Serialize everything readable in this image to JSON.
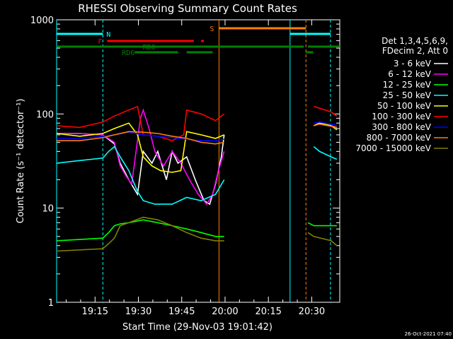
{
  "chart_data": {
    "type": "line",
    "title": "RHESSI Observing Summary Count Rates",
    "xlabel": "Start Time (29-Nov-03 19:01:42)",
    "ylabel": "Count Rate (s⁻¹ detector⁻¹)",
    "xlim_min": [
      0,
      98
    ],
    "x_ticks": [
      {
        "label": "19:15",
        "min": 13.3
      },
      {
        "label": "19:30",
        "min": 28.3
      },
      {
        "label": "19:45",
        "min": 43.3
      },
      {
        "label": "20:00",
        "min": 58.3
      },
      {
        "label": "20:15",
        "min": 73.3
      },
      {
        "label": "20:30",
        "min": 88.3
      }
    ],
    "y_scale": "log",
    "ylim": [
      1,
      1000
    ],
    "y_ticks": [
      {
        "label": "1",
        "v": 1
      },
      {
        "label": "10",
        "v": 10
      },
      {
        "label": "100",
        "v": 100
      },
      {
        "label": "1000",
        "v": 1000
      }
    ],
    "legend": {
      "header": [
        "Det 1,3,4,5,6,9,",
        "FDecim 2, Att 0"
      ],
      "placement": "right"
    },
    "series": [
      {
        "name": "3 - 6 keV",
        "color": "#ffffff",
        "points": [
          [
            0,
            62
          ],
          [
            8,
            62
          ],
          [
            16,
            60
          ],
          [
            20,
            48
          ],
          [
            22,
            30
          ],
          [
            25,
            20
          ],
          [
            28,
            14
          ],
          [
            30,
            40
          ],
          [
            33,
            30
          ],
          [
            35,
            40
          ],
          [
            38,
            20
          ],
          [
            40,
            40
          ],
          [
            42,
            30
          ],
          [
            45,
            35
          ],
          [
            48,
            20
          ],
          [
            51,
            12
          ],
          [
            53,
            11
          ],
          [
            55,
            18
          ],
          [
            57,
            35
          ],
          [
            58,
            60
          ]
        ]
      },
      {
        "name": "6 - 12 keV",
        "color": "#ff00ff",
        "points": [
          [
            0,
            62
          ],
          [
            8,
            62
          ],
          [
            16,
            60
          ],
          [
            20,
            50
          ],
          [
            22,
            28
          ],
          [
            24,
            22
          ],
          [
            26,
            18
          ],
          [
            29,
            90
          ],
          [
            30,
            110
          ],
          [
            32,
            70
          ],
          [
            34,
            40
          ],
          [
            37,
            28
          ],
          [
            40,
            40
          ],
          [
            43,
            30
          ],
          [
            46,
            20
          ],
          [
            49,
            14
          ],
          [
            52,
            11
          ],
          [
            54,
            14
          ],
          [
            56,
            25
          ],
          [
            58,
            40
          ]
        ]
      },
      {
        "name": "12 - 25 keV",
        "color": "#00ff00",
        "points": [
          [
            0,
            4.5
          ],
          [
            16,
            4.8
          ],
          [
            18,
            5.5
          ],
          [
            20,
            6.5
          ],
          [
            22,
            6.8
          ],
          [
            25,
            7
          ],
          [
            30,
            7.5
          ],
          [
            35,
            7
          ],
          [
            40,
            6.5
          ],
          [
            45,
            6
          ],
          [
            50,
            5.5
          ],
          [
            55,
            5
          ],
          [
            58,
            5
          ]
        ]
      },
      {
        "name": "25 - 50 keV",
        "color": "#00ffff",
        "points": [
          [
            0,
            30
          ],
          [
            8,
            32
          ],
          [
            16,
            34
          ],
          [
            18,
            40
          ],
          [
            20,
            45
          ],
          [
            22,
            35
          ],
          [
            25,
            25
          ],
          [
            28,
            15
          ],
          [
            30,
            12
          ],
          [
            34,
            11
          ],
          [
            40,
            11
          ],
          [
            45,
            13
          ],
          [
            50,
            12
          ],
          [
            55,
            14
          ],
          [
            58,
            20
          ]
        ]
      },
      {
        "name": "50 - 100 keV",
        "color": "#ffff00",
        "points": [
          [
            0,
            62
          ],
          [
            8,
            58
          ],
          [
            16,
            62
          ],
          [
            20,
            70
          ],
          [
            25,
            80
          ],
          [
            28,
            60
          ],
          [
            30,
            35
          ],
          [
            33,
            28
          ],
          [
            36,
            25
          ],
          [
            40,
            24
          ],
          [
            43,
            25
          ],
          [
            45,
            65
          ],
          [
            50,
            60
          ],
          [
            55,
            55
          ],
          [
            58,
            60
          ]
        ]
      },
      {
        "name": "100 - 300 keV",
        "color": "#ff0000",
        "points": [
          [
            0,
            75
          ],
          [
            8,
            72
          ],
          [
            16,
            82
          ],
          [
            20,
            95
          ],
          [
            25,
            110
          ],
          [
            28,
            120
          ],
          [
            30,
            60
          ],
          [
            35,
            58
          ],
          [
            40,
            52
          ],
          [
            44,
            60
          ],
          [
            45,
            110
          ],
          [
            50,
            100
          ],
          [
            55,
            85
          ],
          [
            58,
            100
          ]
        ]
      },
      {
        "name": "300 - 800 keV",
        "color": "#0000ff",
        "points": [
          [
            0,
            55
          ],
          [
            8,
            55
          ],
          [
            16,
            58
          ],
          [
            20,
            60
          ],
          [
            25,
            64
          ],
          [
            30,
            60
          ],
          [
            35,
            58
          ],
          [
            40,
            56
          ],
          [
            45,
            54
          ],
          [
            50,
            52
          ],
          [
            55,
            52
          ],
          [
            58,
            54
          ]
        ]
      },
      {
        "name": "800 - 7000 keV",
        "color": "#ff8000",
        "points": [
          [
            0,
            52
          ],
          [
            8,
            52
          ],
          [
            16,
            56
          ],
          [
            20,
            60
          ],
          [
            25,
            65
          ],
          [
            30,
            64
          ],
          [
            35,
            62
          ],
          [
            40,
            58
          ],
          [
            45,
            55
          ],
          [
            50,
            50
          ],
          [
            55,
            48
          ],
          [
            58,
            50
          ]
        ]
      },
      {
        "name": "7000 - 15000 keV",
        "color": "#808000",
        "points": [
          [
            0,
            3.5
          ],
          [
            16,
            3.7
          ],
          [
            18,
            4.2
          ],
          [
            20,
            4.8
          ],
          [
            22,
            6.5
          ],
          [
            25,
            7
          ],
          [
            30,
            8
          ],
          [
            35,
            7.5
          ],
          [
            40,
            6.5
          ],
          [
            45,
            5.5
          ],
          [
            50,
            4.8
          ],
          [
            55,
            4.5
          ],
          [
            58,
            4.5
          ]
        ]
      }
    ],
    "series_after": [
      {
        "color": "#ffffff",
        "points": [
          [
            89,
            75
          ],
          [
            91,
            80
          ],
          [
            95,
            75
          ],
          [
            97,
            72
          ]
        ]
      },
      {
        "color": "#ff00ff",
        "points": [
          [
            89,
            75
          ],
          [
            91,
            80
          ],
          [
            95,
            75
          ],
          [
            97,
            72
          ]
        ]
      },
      {
        "color": "#00ff00",
        "points": [
          [
            87,
            7
          ],
          [
            89,
            6.5
          ],
          [
            95,
            6.5
          ],
          [
            97,
            6.5
          ]
        ]
      },
      {
        "color": "#00ffff",
        "points": [
          [
            89,
            45
          ],
          [
            91,
            40
          ],
          [
            95,
            35
          ],
          [
            97,
            33
          ]
        ]
      },
      {
        "color": "#ffff00",
        "points": [
          [
            89,
            75
          ],
          [
            91,
            80
          ],
          [
            95,
            75
          ],
          [
            97,
            68
          ]
        ]
      },
      {
        "color": "#ff0000",
        "points": [
          [
            89,
            120
          ],
          [
            91,
            115
          ],
          [
            95,
            105
          ],
          [
            97,
            95
          ]
        ]
      },
      {
        "color": "#0000ff",
        "points": [
          [
            89,
            80
          ],
          [
            91,
            82
          ],
          [
            95,
            78
          ],
          [
            97,
            76
          ]
        ]
      },
      {
        "color": "#ff8000",
        "points": [
          [
            89,
            75
          ],
          [
            91,
            78
          ],
          [
            95,
            74
          ],
          [
            97,
            72
          ]
        ]
      },
      {
        "color": "#808000",
        "points": [
          [
            87,
            5.5
          ],
          [
            89,
            5
          ],
          [
            95,
            4.5
          ],
          [
            97,
            4
          ]
        ]
      }
    ],
    "vlines": [
      {
        "min": 0,
        "color": "#00ffff",
        "dash": false
      },
      {
        "min": 16,
        "color": "#00ffff",
        "dash": true
      },
      {
        "min": 56.2,
        "color": "#ff8000",
        "dash": false
      },
      {
        "min": 80.8,
        "color": "#00ffff",
        "dash": false
      },
      {
        "min": 86.3,
        "color": "#ff8000",
        "dash": true
      },
      {
        "min": 94.8,
        "color": "#00ffff",
        "dash": true
      }
    ],
    "flag_bars": [
      {
        "label": "N",
        "color": "#00ffff",
        "segments": [
          [
            0,
            16
          ],
          [
            80.8,
            94.8
          ]
        ],
        "y_level": 1
      },
      {
        "label": "S",
        "color": "#ff8000",
        "segments": [
          [
            56.2,
            86.3
          ]
        ],
        "y_level": 0
      },
      {
        "label": "F",
        "color": "#ff0000",
        "segments": [
          [
            17.5,
            47.5
          ],
          [
            50,
            51
          ]
        ],
        "y_level": 2
      },
      {
        "label": "RD0",
        "color": "#008000",
        "segments": [
          [
            0,
            85.5
          ],
          [
            87,
            98
          ]
        ],
        "y_level": 3
      },
      {
        "label": "RD6",
        "color": "#008000",
        "segments": [
          [
            27,
            42
          ],
          [
            45,
            54
          ],
          [
            86.3,
            88.8
          ]
        ],
        "y_level": 4
      }
    ]
  },
  "footer": {
    "timestamp": "26-Oct-2021 07:40"
  }
}
